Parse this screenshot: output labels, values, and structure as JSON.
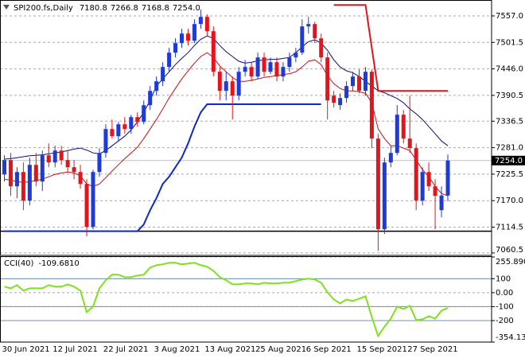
{
  "chart_data": [
    {
      "type": "candlestick",
      "title": "SPI200.fs,Daily",
      "ohlc_labels": [
        "7180.8",
        "7266.8",
        "7168.8",
        "7254.0"
      ],
      "categories": [
        "30 Jun 2021",
        null,
        null,
        null,
        null,
        null,
        null,
        null,
        "12 Jul 2021",
        null,
        null,
        null,
        null,
        null,
        null,
        null,
        "22 Jul 2021",
        null,
        null,
        null,
        null,
        null,
        null,
        null,
        "3 Aug 2021",
        null,
        null,
        null,
        null,
        null,
        null,
        null,
        "13 Aug 2021",
        null,
        null,
        null,
        null,
        null,
        null,
        null,
        "25 Aug 2021",
        null,
        null,
        null,
        null,
        null,
        null,
        null,
        "6 Sep 2021",
        null,
        null,
        null,
        null,
        null,
        null,
        null,
        "15 Sep 2021",
        null,
        null,
        null,
        null,
        null,
        null,
        null,
        "27 Sep 2021",
        null,
        null,
        null,
        null,
        null,
        null
      ],
      "open": [
        7225,
        7255,
        7200,
        7230,
        7170,
        7245,
        7210,
        7265,
        7250,
        7275,
        7255,
        7240,
        7230,
        7205,
        7115,
        7230,
        7270,
        7320,
        7305,
        7330,
        7320,
        7345,
        7335,
        7370,
        7400,
        7420,
        7450,
        7480,
        7500,
        7520,
        7505,
        7540,
        7555,
        7525,
        7440,
        7400,
        7420,
        7390,
        7440,
        7450,
        7430,
        7470,
        7440,
        7460,
        7430,
        7450,
        7470,
        7480,
        7535,
        7540,
        7510,
        7470,
        7390,
        7370,
        7385,
        7410,
        7430,
        7400,
        7440,
        7300,
        7110,
        7250,
        7270,
        7350,
        7300,
        7280,
        7170,
        7230,
        7200,
        7150,
        7180.8
      ],
      "high": [
        7265,
        7270,
        7240,
        7250,
        7260,
        7270,
        7275,
        7290,
        7285,
        7285,
        7275,
        7255,
        7245,
        7215,
        7235,
        7280,
        7330,
        7340,
        7335,
        7345,
        7350,
        7355,
        7380,
        7410,
        7430,
        7460,
        7490,
        7510,
        7530,
        7530,
        7550,
        7570,
        7560,
        7535,
        7450,
        7440,
        7430,
        7450,
        7465,
        7460,
        7480,
        7480,
        7470,
        7470,
        7460,
        7480,
        7490,
        7550,
        7555,
        7545,
        7520,
        7480,
        7400,
        7395,
        7420,
        7440,
        7445,
        7450,
        7445,
        7310,
        7260,
        7285,
        7370,
        7360,
        7390,
        7290,
        7240,
        7250,
        7215,
        7200,
        7266.8
      ],
      "low": [
        7210,
        7180,
        7175,
        7150,
        7160,
        7200,
        7190,
        7240,
        7240,
        7245,
        7230,
        7215,
        7195,
        7095,
        7110,
        7220,
        7260,
        7300,
        7295,
        7310,
        7310,
        7325,
        7330,
        7360,
        7390,
        7410,
        7440,
        7470,
        7490,
        7495,
        7500,
        7530,
        7515,
        7430,
        7380,
        7380,
        7340,
        7380,
        7430,
        7420,
        7425,
        7430,
        7435,
        7420,
        7420,
        7440,
        7460,
        7475,
        7520,
        7500,
        7460,
        7340,
        7365,
        7360,
        7375,
        7400,
        7395,
        7390,
        7280,
        7065,
        7100,
        7240,
        7265,
        7290,
        7270,
        7150,
        7160,
        7190,
        7110,
        7135,
        7168.8
      ],
      "close": [
        7255,
        7200,
        7230,
        7170,
        7245,
        7210,
        7265,
        7250,
        7275,
        7255,
        7240,
        7230,
        7205,
        7115,
        7230,
        7270,
        7320,
        7305,
        7330,
        7320,
        7345,
        7335,
        7370,
        7400,
        7420,
        7450,
        7480,
        7500,
        7520,
        7505,
        7540,
        7555,
        7525,
        7440,
        7400,
        7420,
        7390,
        7440,
        7450,
        7430,
        7470,
        7440,
        7460,
        7430,
        7450,
        7470,
        7480,
        7535,
        7540,
        7510,
        7470,
        7380,
        7375,
        7385,
        7410,
        7430,
        7400,
        7440,
        7300,
        7110,
        7250,
        7270,
        7350,
        7300,
        7280,
        7170,
        7230,
        7200,
        7180,
        7180.8,
        7254
      ],
      "up_color": "#1f3ad6",
      "down_color": "#e4141c",
      "overlays": [
        {
          "color": "#0b0b7a",
          "width": 1,
          "values": [
            7257,
            7258,
            7260,
            7262,
            7264,
            7265,
            7266,
            7268,
            7270,
            7272,
            7275,
            7278,
            7280,
            7276,
            7270,
            7268,
            7275,
            7285,
            7295,
            7305,
            7318,
            7335,
            7355,
            7380,
            7410,
            7425,
            7440,
            7455,
            7468,
            7480,
            7495,
            7508,
            7515,
            7510,
            7495,
            7482,
            7472,
            7462,
            7458,
            7460,
            7463,
            7465,
            7466,
            7466,
            7468,
            7470,
            7480,
            7492,
            7503,
            7507,
            7500,
            7485,
            7465,
            7450,
            7442,
            7438,
            7430,
            7420,
            7410,
            7400,
            7396,
            7390,
            7384,
            7375,
            7362,
            7352,
            7340,
            7325,
            7310,
            7295,
            7285
          ]
        },
        {
          "color": "#cc1010",
          "width": 1,
          "values": [
            7215,
            7213,
            7210,
            7208,
            7210,
            7212,
            7215,
            7220,
            7225,
            7228,
            7230,
            7228,
            7222,
            7205,
            7200,
            7205,
            7218,
            7232,
            7245,
            7258,
            7270,
            7282,
            7300,
            7320,
            7340,
            7362,
            7385,
            7405,
            7425,
            7442,
            7458,
            7472,
            7480,
            7470,
            7452,
            7440,
            7428,
            7420,
            7420,
            7422,
            7425,
            7428,
            7430,
            7432,
            7434,
            7436,
            7440,
            7450,
            7462,
            7465,
            7455,
            7432,
            7415,
            7405,
            7400,
            7400,
            7398,
            7395,
            7375,
            7320,
            7300,
            7285,
            7285,
            7280,
            7275,
            7255,
            7235,
            7220,
            7200,
            7185,
            7180
          ]
        },
        {
          "color": "#1028c8",
          "width": 2,
          "values": [
            7106,
            7106,
            7106,
            7106,
            7106,
            7106,
            7106,
            7106,
            7106,
            7106,
            7106,
            7106,
            7106,
            7106,
            7106,
            7106,
            7106,
            7106,
            7106,
            7106,
            7106,
            7106,
            7120,
            7150,
            7175,
            7205,
            7220,
            7240,
            7260,
            7290,
            7325,
            7355,
            7372,
            7372,
            7372,
            7372,
            7372,
            7372,
            7372,
            7372,
            7372,
            7372,
            7372,
            7372,
            7372,
            7372,
            7372,
            7372,
            7372,
            7372,
            7372,
            null,
            null,
            null,
            null,
            null,
            null,
            null,
            null,
            null,
            null,
            null,
            null,
            null,
            null,
            null,
            null,
            null,
            null,
            null,
            null
          ]
        },
        {
          "color": "#e4141c",
          "width": 2,
          "values": [
            null,
            null,
            null,
            null,
            null,
            null,
            null,
            null,
            null,
            null,
            null,
            null,
            null,
            null,
            null,
            null,
            null,
            null,
            null,
            null,
            null,
            null,
            null,
            null,
            null,
            null,
            null,
            null,
            null,
            null,
            null,
            null,
            null,
            null,
            null,
            null,
            null,
            null,
            null,
            null,
            null,
            null,
            null,
            null,
            null,
            null,
            null,
            null,
            null,
            null,
            null,
            null,
            7580,
            7580,
            7580,
            7580,
            7580,
            7580,
            7490,
            7400,
            7400,
            7400,
            7400,
            7400,
            7400,
            7400,
            7400,
            7400,
            7400,
            7400,
            7400
          ]
        }
      ],
      "hline": 7106,
      "price_line": {
        "value": 7254,
        "label": "7254.0"
      },
      "ylim": [
        7057,
        7587
      ],
      "yticks": [
        {
          "value": 7557,
          "label": "7557.0"
        },
        7501.5,
        {
          "value": 7446,
          "label": "7446.0"
        },
        7390.5,
        7336.5,
        {
          "value": 7281,
          "label": "7281.0"
        },
        7225.5,
        {
          "value": 7170,
          "label": "7170.0"
        },
        7114.5,
        7060.5
      ],
      "grid": true
    },
    {
      "type": "line",
      "title": "CCI(40)",
      "current": {
        "value": -109.681,
        "label": "-109.6810"
      },
      "color": "#7fe01c",
      "values": [
        43,
        31,
        54,
        14,
        31,
        31,
        31,
        54,
        43,
        43,
        60,
        43,
        14,
        -140,
        -100,
        31,
        89,
        129,
        129,
        111,
        111,
        123,
        129,
        180,
        197,
        203,
        214,
        214,
        203,
        209,
        214,
        197,
        186,
        157,
        111,
        89,
        60,
        60,
        66,
        66,
        60,
        71,
        66,
        66,
        71,
        71,
        83,
        94,
        100,
        94,
        71,
        3,
        -49,
        -77,
        -49,
        -60,
        -43,
        -26,
        -174,
        -311,
        -243,
        -186,
        -100,
        -117,
        -94,
        -197,
        -191,
        -169,
        -186,
        -129,
        -109.681
      ],
      "levels": [
        100,
        -100,
        -200
      ],
      "level_color": "#6f93b0",
      "ylim": [
        -354.135,
        255.8902
      ],
      "yticks": [
        255.8902,
        100,
        {
          "value": 0,
          "label": "0.00"
        },
        -100,
        -200,
        -354.135
      ],
      "grid": true
    }
  ]
}
